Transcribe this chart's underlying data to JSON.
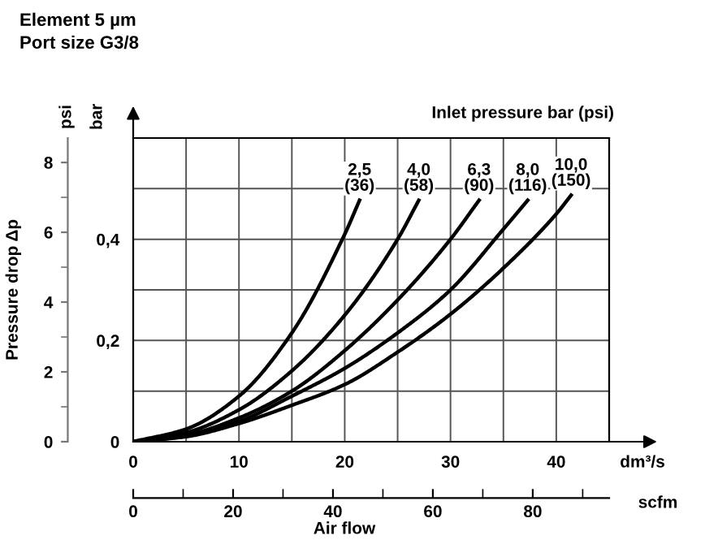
{
  "chart_data": {
    "type": "line",
    "title": "Element 5 µm",
    "subtitle": "Port size G3/8",
    "xlabel": "dm³/s",
    "ylabel": "bar",
    "y2label": "Pressure drop Δp",
    "x2label": "scfm",
    "legend_title": "Inlet pressure bar (psi)",
    "annotations": [
      "psi",
      "Air flow"
    ],
    "series": [
      {
        "name": "2,5\n(36)",
        "color": "#000000",
        "x": [
          0,
          5,
          10,
          15,
          20,
          21.4
        ],
        "values": [
          0,
          0.025,
          0.09,
          0.215,
          0.41,
          0.477
        ]
      },
      {
        "name": "4,0\n(58)",
        "color": "#000000",
        "x": [
          0,
          5,
          10,
          15,
          20,
          25,
          27.0
        ],
        "values": [
          0,
          0.018,
          0.063,
          0.14,
          0.25,
          0.4,
          0.477
        ]
      },
      {
        "name": "6,3\n(90)",
        "color": "#000000",
        "x": [
          0,
          5,
          10,
          15,
          20,
          25,
          30,
          32.7
        ],
        "values": [
          0,
          0.013,
          0.047,
          0.1,
          0.18,
          0.28,
          0.4,
          0.477
        ]
      },
      {
        "name": "8,0\n(116)",
        "color": "#000000",
        "x": [
          0,
          5,
          10,
          15,
          20,
          25,
          30,
          35,
          37.3
        ],
        "values": [
          0,
          0.011,
          0.04,
          0.09,
          0.145,
          0.215,
          0.3,
          0.42,
          0.477
        ]
      },
      {
        "name": "10,0\n(150)",
        "color": "#000000",
        "x": [
          0,
          5,
          10,
          15,
          20,
          25,
          30,
          35,
          40,
          41.4
        ],
        "values": [
          0,
          0.01,
          0.036,
          0.072,
          0.113,
          0.177,
          0.252,
          0.343,
          0.45,
          0.487
        ]
      }
    ],
    "xlim": [
      0,
      45
    ],
    "xticks": [
      0,
      {
        "value": 5,
        "label": null
      },
      10,
      {
        "value": 15,
        "label": null
      },
      20,
      {
        "value": 25,
        "label": null
      },
      30,
      {
        "value": 35,
        "label": null
      },
      40,
      {
        "value": 45,
        "label": null
      }
    ],
    "ylim": [
      0,
      0.6
    ],
    "yticks": [
      0,
      {
        "value": 0.1,
        "label": null
      },
      {
        "value": 0.2,
        "label": "0,2"
      },
      {
        "value": 0.3,
        "label": null
      },
      {
        "value": 0.4,
        "label": "0,4"
      },
      {
        "value": 0.5,
        "label": null
      },
      {
        "value": 0.6,
        "label": null
      }
    ],
    "y2lim": [
      0,
      8.7
    ],
    "y2ticks": [
      0,
      2,
      4,
      6,
      8
    ],
    "x2lim": [
      0,
      95.3
    ],
    "x2ticks": [
      0,
      20,
      40,
      60,
      80
    ],
    "grid": true,
    "marker": "none",
    "line_style": "solid"
  }
}
